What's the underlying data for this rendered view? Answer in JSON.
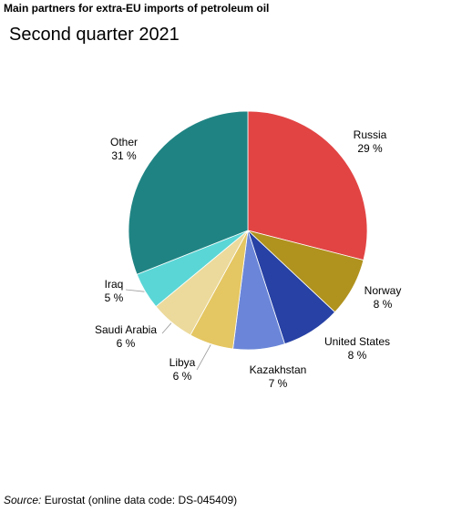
{
  "title": "Main partners for extra-EU imports of petroleum oil",
  "subtitle": "Second quarter 2021",
  "source": {
    "label": "Source:",
    "text": "Eurostat (online data code: DS-045409)"
  },
  "chart_data": {
    "type": "pie",
    "title": "Main partners for extra-EU imports of petroleum oil",
    "subtitle": "Second quarter 2021",
    "slices": [
      {
        "name": "Russia",
        "value": 29,
        "display": "29 %",
        "color": "#e24444"
      },
      {
        "name": "Norway",
        "value": 8,
        "display": "8 %",
        "color": "#b0921e"
      },
      {
        "name": "United States",
        "value": 8,
        "display": "8 %",
        "color": "#2741a4"
      },
      {
        "name": "Kazakhstan",
        "value": 7,
        "display": "7 %",
        "color": "#6b86d8"
      },
      {
        "name": "Libya",
        "value": 6,
        "display": "6 %",
        "color": "#e4c662"
      },
      {
        "name": "Saudi Arabia",
        "value": 6,
        "display": "6 %",
        "color": "#ecda9c"
      },
      {
        "name": "Iraq",
        "value": 5,
        "display": "5 %",
        "color": "#5bd6d6"
      },
      {
        "name": "Other",
        "value": 31,
        "display": "31 %",
        "color": "#208383"
      }
    ]
  }
}
